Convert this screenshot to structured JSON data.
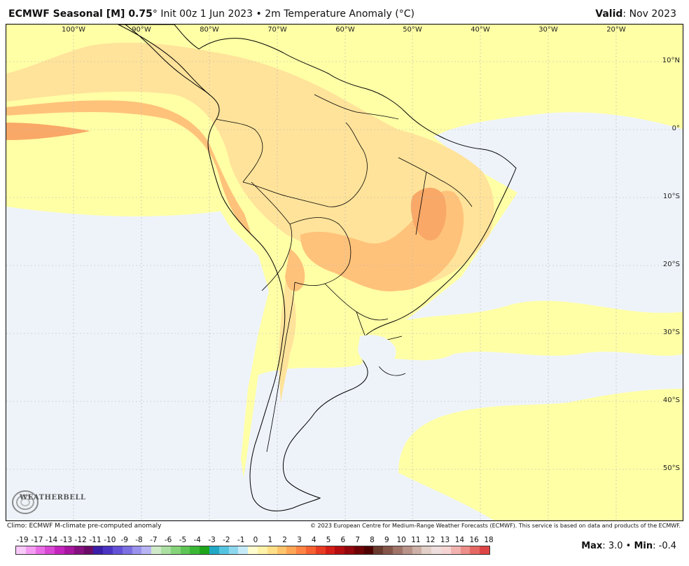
{
  "header": {
    "model": "ECMWF Seasonal [M] 0.75",
    "degree": "°",
    "init": "Init 00z 1 Jun 2023",
    "bullet": "•",
    "field": "2m Temperature Anomaly (°C)",
    "valid_label": "Valid",
    "valid_value": "Nov 2023"
  },
  "map": {
    "lon_labels": [
      "100°W",
      "90°W",
      "80°W",
      "70°W",
      "60°W",
      "50°W",
      "40°W",
      "30°W",
      "20°W"
    ],
    "lat_labels": [
      "10°N",
      "0°",
      "10°S",
      "20°S",
      "30°S",
      "40°S",
      "50°S"
    ],
    "colors": {
      "ocean_neutral": "#eef3fa",
      "anom_0_1": "#ffffa6",
      "anom_1_2": "#ffe39a",
      "anom_2_3": "#ffc27a",
      "anom_3_4": "#f9a867",
      "border": "#000000",
      "grid": "#b5b5b5"
    }
  },
  "footer": {
    "climo": "Climo: ECMWF M-climate pre-computed anomaly",
    "copyright": "© 2023 European Centre for Medium-Range Weather Forecasts (ECMWF). This service is based on data and products of the ECMWF."
  },
  "scale": {
    "labels": [
      "-19",
      "-17",
      "-14",
      "-13",
      "-12",
      "-11",
      "-10",
      "-9",
      "-8",
      "-7",
      "-6",
      "-5",
      "-4",
      "-3",
      "-2",
      "-1",
      "0",
      "1",
      "2",
      "3",
      "4",
      "5",
      "6",
      "7",
      "8",
      "9",
      "10",
      "11",
      "12",
      "13",
      "14",
      "16",
      "18"
    ],
    "colors": [
      "#f9c9f9",
      "#f49cf2",
      "#e96ee6",
      "#d848d3",
      "#c424bd",
      "#a7169f",
      "#851080",
      "#6a0c67",
      "#3b1ea8",
      "#4b34c4",
      "#6351d6",
      "#7c6fe2",
      "#9a92ec",
      "#b8b4f4",
      "#cfe9c9",
      "#abe0a2",
      "#86d47a",
      "#5fc655",
      "#3bb735",
      "#1fa51c",
      "#20a8c4",
      "#55c4e0",
      "#8ed8ef",
      "#c6ebf8",
      "#fffccf",
      "#fff2a9",
      "#ffe088",
      "#ffc56c",
      "#ffa655",
      "#ff8443",
      "#f76131",
      "#e73c22",
      "#d31d16",
      "#b40d10",
      "#91070b",
      "#6e0307",
      "#4e0000",
      "#6b3a2e",
      "#86564a",
      "#a07469",
      "#b99389",
      "#cdb0a7",
      "#e1cfc8",
      "#eddedd",
      "#f5d5d3",
      "#f2b3b0",
      "#ec8e89",
      "#e56863",
      "#dd4544"
    ]
  },
  "summary": {
    "max_label": "Max",
    "max_value": "3.0",
    "min_label": "Min",
    "min_value": "-0.4",
    "sep": "•"
  },
  "logo": {
    "text": "WEATHERBELL"
  }
}
